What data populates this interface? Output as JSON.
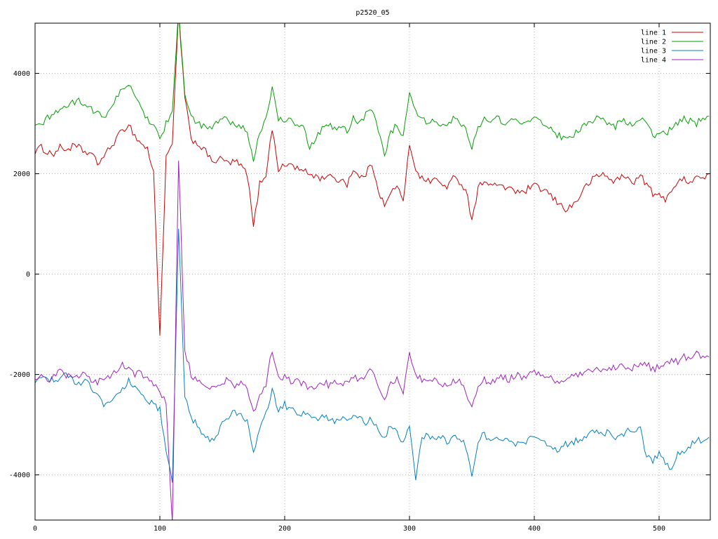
{
  "chart_data": {
    "type": "line",
    "title": "p2520_05",
    "xlabel": "",
    "ylabel": "",
    "xlim": [
      0,
      541
    ],
    "ylim": [
      -4900,
      5000
    ],
    "x_step": 5,
    "xticks": [
      0,
      100,
      200,
      300,
      400,
      500
    ],
    "yticks": [
      -4000,
      -2000,
      0,
      2000,
      4000
    ],
    "grid": true,
    "legend_position": "top-right",
    "background": "#ffffff",
    "border_color": "#000000",
    "grid_color": "#b5b5b5",
    "noise_amplitude": 70,
    "series": [
      {
        "name": "line 1",
        "color": "#cc0000",
        "values": [
          2450,
          2520,
          2430,
          2400,
          2520,
          2480,
          2540,
          2520,
          2430,
          2400,
          2200,
          2350,
          2500,
          2700,
          2850,
          3000,
          2750,
          2600,
          2500,
          2000,
          -1200,
          2300,
          2600,
          5200,
          3500,
          2700,
          2600,
          2500,
          2300,
          2250,
          2300,
          2200,
          2250,
          2150,
          2000,
          950,
          1800,
          2000,
          2900,
          2100,
          2150,
          2200,
          2100,
          2050,
          2000,
          1950,
          1900,
          2000,
          1850,
          1900,
          1800,
          2100,
          1900,
          2000,
          2200,
          1700,
          1350,
          1600,
          1800,
          1400,
          2600,
          2100,
          1900,
          1850,
          1900,
          1800,
          1750,
          1900,
          1850,
          1700,
          1100,
          1700,
          1900,
          1750,
          1800,
          1700,
          1750,
          1650,
          1600,
          1700,
          1750,
          1700,
          1650,
          1500,
          1400,
          1300,
          1350,
          1500,
          1700,
          1850,
          1950,
          2000,
          1900,
          1850,
          1950,
          1900,
          1850,
          1950,
          1800,
          1600,
          1550,
          1500,
          1700,
          1800,
          1900,
          1850,
          1950,
          1900,
          2000
        ]
      },
      {
        "name": "line 2",
        "color": "#00a000",
        "values": [
          2900,
          3000,
          3100,
          3200,
          3300,
          3350,
          3400,
          3450,
          3400,
          3300,
          3200,
          3100,
          3300,
          3500,
          3700,
          3800,
          3500,
          3300,
          3100,
          3000,
          2700,
          3000,
          3200,
          5300,
          3600,
          3100,
          3000,
          2950,
          2900,
          3000,
          3100,
          3050,
          3000,
          2950,
          2800,
          2300,
          2800,
          3100,
          3700,
          3100,
          3000,
          3100,
          2950,
          2900,
          2550,
          2700,
          2900,
          3000,
          2900,
          2950,
          2850,
          3100,
          3000,
          3200,
          3300,
          2900,
          2400,
          2800,
          3000,
          2700,
          3600,
          3200,
          3100,
          3000,
          3100,
          3000,
          2950,
          3100,
          3050,
          2900,
          2550,
          2900,
          3100,
          3000,
          3100,
          3050,
          3000,
          3100,
          3050,
          3000,
          3100,
          3050,
          2950,
          2850,
          2750,
          2700,
          2750,
          2850,
          2950,
          3000,
          3100,
          3050,
          3000,
          2950,
          3050,
          3000,
          2950,
          3100,
          2950,
          2800,
          2750,
          2800,
          2900,
          3000,
          3100,
          3050,
          3000,
          3100,
          3150
        ]
      },
      {
        "name": "line 3",
        "color": "#0080c0",
        "values": [
          -2150,
          -2100,
          -2050,
          -2150,
          -2100,
          -2000,
          -2100,
          -2200,
          -2150,
          -2250,
          -2400,
          -2600,
          -2550,
          -2400,
          -2300,
          -2100,
          -2250,
          -2400,
          -2500,
          -2600,
          -2700,
          -3500,
          -4100,
          950,
          -2400,
          -2900,
          -3000,
          -3200,
          -3350,
          -3300,
          -3000,
          -2850,
          -2750,
          -2800,
          -2900,
          -3500,
          -3100,
          -2800,
          -2300,
          -2700,
          -2600,
          -2700,
          -2800,
          -2750,
          -2850,
          -2900,
          -2800,
          -2900,
          -2950,
          -2850,
          -2950,
          -2800,
          -2900,
          -2950,
          -2900,
          -3100,
          -3300,
          -3000,
          -3100,
          -3400,
          -3000,
          -4050,
          -3300,
          -3200,
          -3300,
          -3250,
          -3350,
          -3200,
          -3300,
          -3400,
          -4050,
          -3300,
          -3200,
          -3300,
          -3250,
          -3350,
          -3300,
          -3400,
          -3350,
          -3300,
          -3250,
          -3350,
          -3400,
          -3450,
          -3500,
          -3400,
          -3350,
          -3300,
          -3250,
          -3200,
          -3100,
          -3200,
          -3150,
          -3250,
          -3200,
          -3100,
          -3150,
          -3050,
          -3650,
          -3700,
          -3600,
          -3750,
          -3900,
          -3600,
          -3500,
          -3400,
          -3300,
          -3350,
          -3250
        ]
      },
      {
        "name": "line 4",
        "color": "#a020c0",
        "values": [
          -2050,
          -2000,
          -2100,
          -2050,
          -1950,
          -2000,
          -2100,
          -2050,
          -2000,
          -2100,
          -2150,
          -2100,
          -2050,
          -1900,
          -1800,
          -1900,
          -2000,
          -1950,
          -2100,
          -2200,
          -2300,
          -2600,
          -4950,
          2300,
          -1500,
          -2000,
          -2100,
          -2200,
          -2300,
          -2250,
          -2150,
          -2100,
          -2200,
          -2150,
          -2300,
          -2800,
          -2400,
          -2200,
          -1500,
          -2100,
          -2050,
          -2150,
          -2100,
          -2200,
          -2250,
          -2300,
          -2150,
          -2200,
          -2100,
          -2200,
          -2150,
          -2050,
          -2100,
          -2000,
          -1900,
          -2200,
          -2500,
          -2200,
          -2100,
          -2400,
          -1600,
          -2000,
          -2100,
          -2150,
          -2100,
          -2200,
          -2250,
          -2100,
          -2150,
          -2300,
          -2700,
          -2200,
          -2100,
          -2150,
          -2100,
          -2050,
          -2100,
          -2000,
          -2050,
          -2000,
          -1950,
          -2000,
          -2050,
          -2100,
          -2150,
          -2100,
          -2050,
          -2000,
          -1950,
          -1900,
          -1850,
          -1950,
          -1900,
          -1850,
          -1800,
          -1900,
          -1850,
          -1750,
          -1800,
          -1900,
          -1850,
          -1750,
          -1700,
          -1750,
          -1650,
          -1700,
          -1600,
          -1700,
          -1650
        ]
      }
    ]
  }
}
